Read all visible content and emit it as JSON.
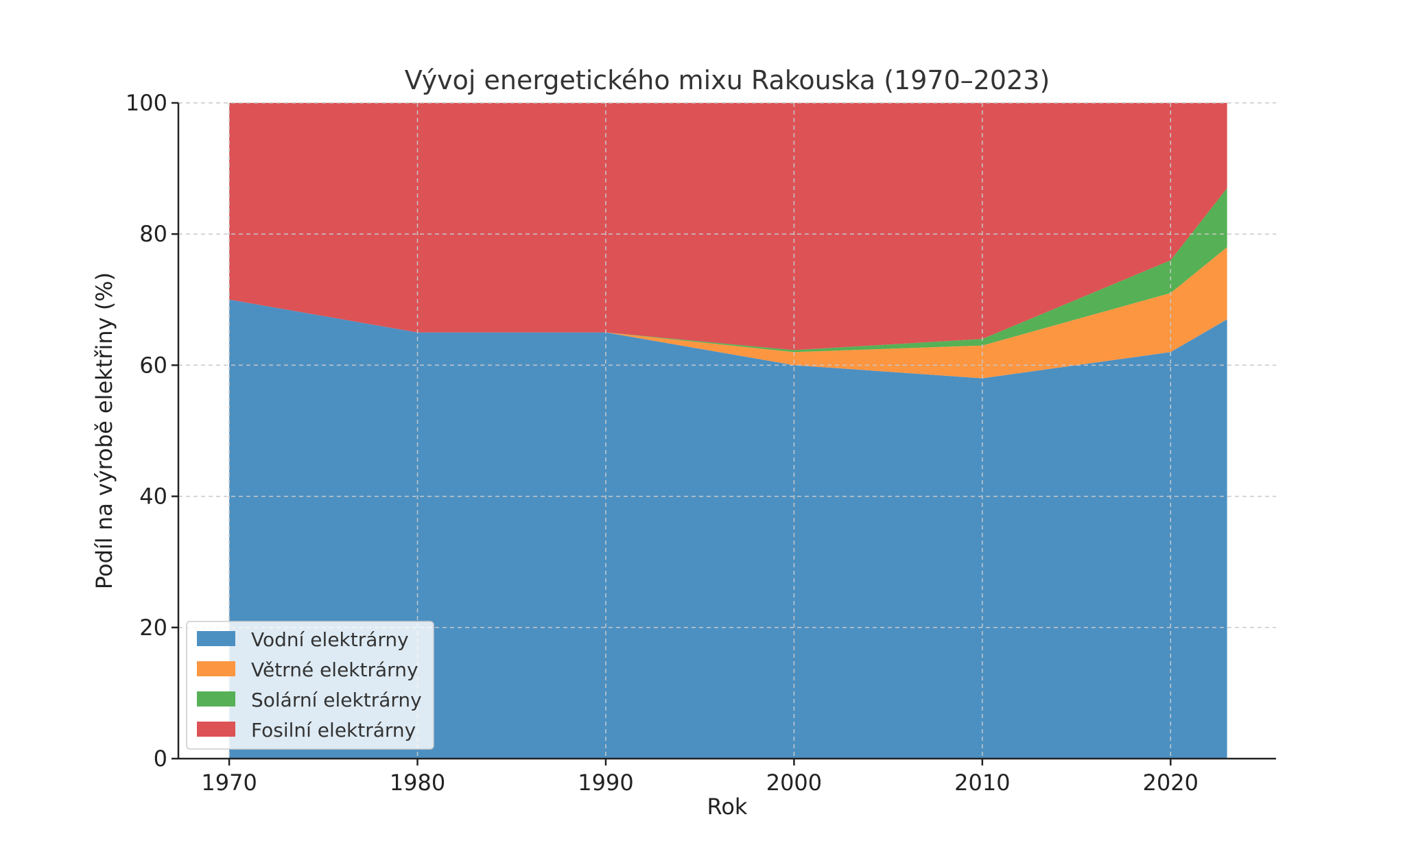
{
  "chart_data": {
    "type": "area",
    "stacked": true,
    "title": "Vývoj energetického mixu Rakouska (1970–2023)",
    "xlabel": "Rok",
    "ylabel": "Podíl na výrobě elektřiny (%)",
    "xlim": [
      1967.3,
      2025.6
    ],
    "ylim": [
      0,
      100
    ],
    "xticks": [
      1970,
      1980,
      1990,
      2000,
      2010,
      2020
    ],
    "yticks": [
      0,
      20,
      40,
      60,
      80,
      100
    ],
    "grid": true,
    "legend_position": "lower-left",
    "x": [
      1970,
      1980,
      1990,
      2000,
      2010,
      2020,
      2023
    ],
    "series": [
      {
        "name": "Vodní elektrárny",
        "color": "#4c90c2",
        "values": [
          70,
          65,
          65,
          60,
          58,
          62,
          67
        ]
      },
      {
        "name": "Větrné elektrárny",
        "color": "#fd9641",
        "values": [
          0,
          0,
          0,
          2,
          5,
          9,
          11
        ]
      },
      {
        "name": "Solární elektrárny",
        "color": "#56b055",
        "values": [
          0,
          0,
          0,
          0.3,
          1,
          5,
          9
        ]
      },
      {
        "name": "Fosilní elektrárny",
        "color": "#dc5255",
        "values": [
          30,
          35,
          35,
          37.7,
          36,
          24,
          13
        ]
      }
    ]
  }
}
